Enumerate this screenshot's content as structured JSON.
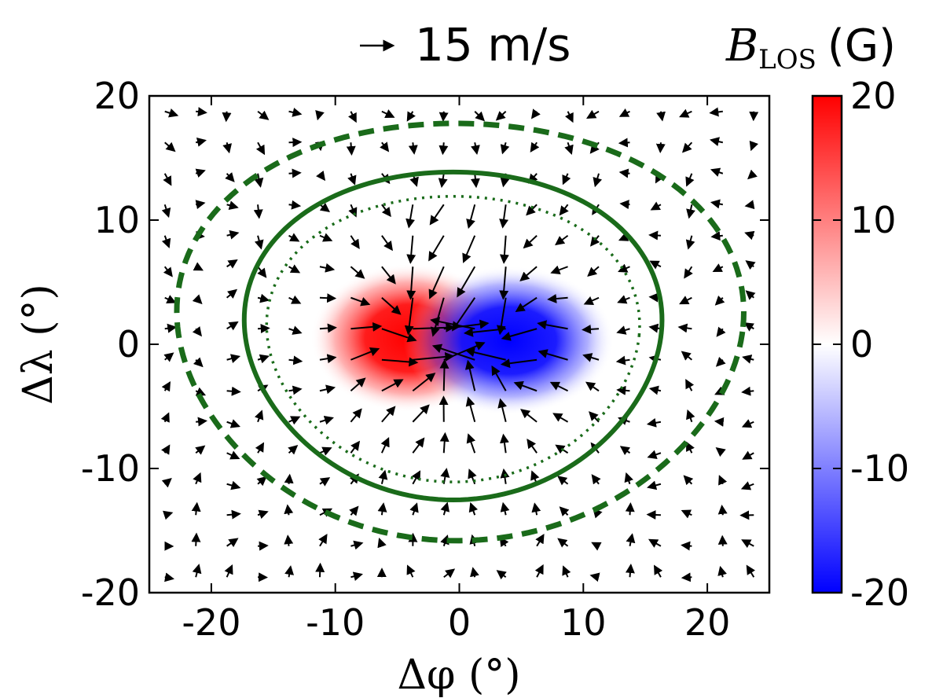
{
  "chart_data": {
    "type": "heatmap",
    "subtype": "vector-field-overlay",
    "title": "15 m/s",
    "reference_arrow": {
      "speed_mps": 15,
      "label": "15 m/s"
    },
    "xlabel": "Δφ (°)",
    "ylabel": "Δλ (°)",
    "xlim": [
      -25,
      25
    ],
    "ylim": [
      -20,
      20
    ],
    "xticks": [
      -20,
      -10,
      0,
      10,
      20
    ],
    "xtick_labels": [
      "-20",
      "-10",
      "0",
      "10",
      "20"
    ],
    "yticks": [
      -20,
      -10,
      0,
      10,
      20
    ],
    "ytick_labels": [
      "-20",
      "-10",
      "0",
      "10",
      "20"
    ],
    "colorbar": {
      "label_symbol": "B",
      "label_sub": "LOS",
      "label_unit": "(G)",
      "min": -20,
      "max": 20,
      "ticks": [
        20,
        10,
        0,
        -10,
        -20
      ],
      "tick_labels": [
        "20",
        "10",
        "0",
        "-10",
        "-20"
      ],
      "cmap": "bwr",
      "colors": {
        "low": "#0000ff",
        "mid": "#ffffff",
        "high": "#ff0000"
      }
    },
    "field": {
      "positive_pole": {
        "x": -4,
        "y": 0.5,
        "peak_G": 20
      },
      "negative_pole": {
        "x": 4,
        "y": 0.3,
        "peak_G": -20
      }
    },
    "flow": {
      "grid_spacing_deg": 2.5,
      "center": {
        "x": 0,
        "y": 0.5
      },
      "pattern": "inflow converging toward the dipole with counter-flow along the polarity inversion line"
    },
    "contours": [
      {
        "name": "solid",
        "style": "solid",
        "color": "#1a6b1a",
        "cx": -0.5,
        "cy": 1.0,
        "rx": 16.8,
        "ry": 13.2,
        "phase_deg": 0
      },
      {
        "name": "dotted",
        "style": "dotted",
        "color": "#1a6b1a",
        "cx": -0.5,
        "cy": 0.7,
        "rx": 15.0,
        "ry": 11.5,
        "phase_deg": 0
      },
      {
        "name": "dashed",
        "style": "dashed",
        "color": "#1a6b1a",
        "cx": 0.0,
        "cy": 1.4,
        "rx": 22.8,
        "ry": 16.8,
        "phase_deg": 8
      }
    ]
  }
}
